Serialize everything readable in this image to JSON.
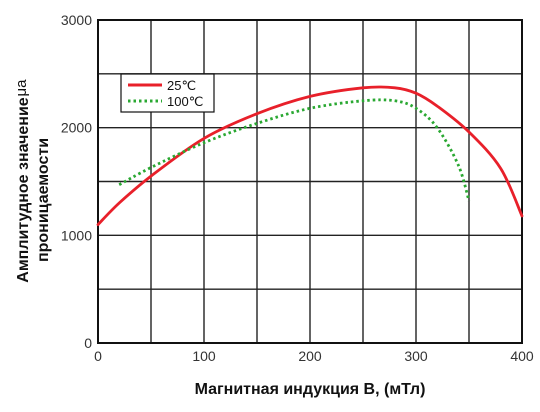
{
  "chart_data": {
    "type": "line",
    "xlabel": "Магнитная индукция B, (мТл)",
    "ylabel_line1": "Амплитудное значение",
    "ylabel_line2": "проницаемости",
    "ylabel_unit": "μa",
    "xlim": [
      0,
      400
    ],
    "ylim": [
      0,
      3000
    ],
    "x_ticks": [
      "0",
      "100",
      "200",
      "300",
      "400"
    ],
    "y_ticks": [
      "0",
      "1000",
      "2000",
      "3000"
    ],
    "grid": true,
    "legend_position": "top-left",
    "series": [
      {
        "name": "25℃",
        "color": "#e8202a",
        "style": "solid",
        "x": [
          0,
          20,
          50,
          100,
          150,
          200,
          250,
          280,
          300,
          320,
          350,
          380,
          400
        ],
        "y": [
          1100,
          1300,
          1550,
          1900,
          2130,
          2290,
          2370,
          2370,
          2320,
          2200,
          1960,
          1620,
          1180
        ]
      },
      {
        "name": "100℃",
        "color": "#2aa832",
        "style": "dotted",
        "x": [
          20,
          50,
          100,
          150,
          200,
          250,
          280,
          300,
          320,
          340,
          350
        ],
        "y": [
          1470,
          1630,
          1860,
          2040,
          2180,
          2250,
          2250,
          2180,
          2000,
          1650,
          1320
        ]
      }
    ]
  }
}
